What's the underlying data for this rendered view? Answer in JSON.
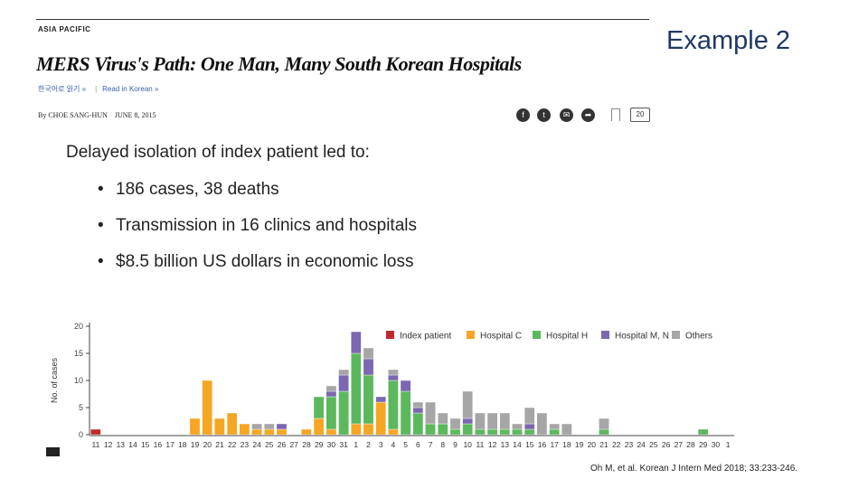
{
  "article": {
    "section": "ASIA PACIFIC",
    "headline": "MERS Virus's Path: One Man, Many South Korean Hospitals",
    "korean_link": "한국어로 읽기 »",
    "read_korean": "Read in Korean »",
    "byline": "By CHOE SANG-HUN",
    "date": "JUNE 8, 2015",
    "comment_count": "20",
    "icons": [
      "facebook-icon",
      "twitter-icon",
      "email-icon",
      "share-icon",
      "bookmark-icon",
      "comment-icon"
    ]
  },
  "slide": {
    "title": "Example 2",
    "lead": "Delayed isolation of index patient led to:",
    "bullets": [
      "186 cases, 38 deaths",
      "Transmission in 16 clinics and hospitals",
      "$8.5 billion US dollars in economic loss"
    ],
    "citation": "Oh M, et al. Korean J Intern Med 2018; 33:233-246."
  },
  "chart_data": {
    "type": "bar",
    "stacked": true,
    "ylabel": "No. of cases",
    "xlabel": "",
    "ylim": [
      0,
      20
    ],
    "yticks": [
      0,
      5,
      10,
      15,
      20
    ],
    "legend_position": "top-right",
    "categories": [
      "11",
      "12",
      "13",
      "14",
      "15",
      "16",
      "17",
      "18",
      "19",
      "20",
      "21",
      "22",
      "23",
      "24",
      "25",
      "26",
      "27",
      "28",
      "29",
      "30",
      "31",
      "1",
      "2",
      "3",
      "4",
      "5",
      "6",
      "7",
      "8",
      "9",
      "10",
      "11",
      "12",
      "13",
      "14",
      "15",
      "16",
      "17",
      "18",
      "19",
      "20",
      "21",
      "22",
      "23",
      "24",
      "25",
      "26",
      "27",
      "28",
      "29",
      "30",
      "1"
    ],
    "series": [
      {
        "name": "Index patient",
        "color": "#c0282d",
        "values": [
          1,
          0,
          0,
          0,
          0,
          0,
          0,
          0,
          0,
          0,
          0,
          0,
          0,
          0,
          0,
          0,
          0,
          0,
          0,
          0,
          0,
          0,
          0,
          0,
          0,
          0,
          0,
          0,
          0,
          0,
          0,
          0,
          0,
          0,
          0,
          0,
          0,
          0,
          0,
          0,
          0,
          0,
          0,
          0,
          0,
          0,
          0,
          0,
          0,
          0,
          0,
          0
        ]
      },
      {
        "name": "Hospital C",
        "color": "#f5a623",
        "values": [
          0,
          0,
          0,
          0,
          0,
          0,
          0,
          0,
          3,
          10,
          3,
          4,
          2,
          1,
          1,
          1,
          0,
          1,
          3,
          1,
          0,
          2,
          2,
          6,
          1,
          0,
          0,
          0,
          0,
          0,
          0,
          0,
          0,
          0,
          0,
          0,
          0,
          0,
          0,
          0,
          0,
          0,
          0,
          0,
          0,
          0,
          0,
          0,
          0,
          0,
          0,
          0
        ]
      },
      {
        "name": "Hospital H",
        "color": "#5cb85c",
        "values": [
          0,
          0,
          0,
          0,
          0,
          0,
          0,
          0,
          0,
          0,
          0,
          0,
          0,
          0,
          0,
          0,
          0,
          0,
          4,
          6,
          8,
          13,
          9,
          0,
          9,
          8,
          4,
          2,
          2,
          1,
          2,
          1,
          1,
          1,
          1,
          1,
          0,
          1,
          0,
          0,
          0,
          1,
          0,
          0,
          0,
          0,
          0,
          0,
          0,
          1,
          0,
          0
        ]
      },
      {
        "name": "Hospital M, N",
        "color": "#7b68b0",
        "values": [
          0,
          0,
          0,
          0,
          0,
          0,
          0,
          0,
          0,
          0,
          0,
          0,
          0,
          0,
          0,
          1,
          0,
          0,
          0,
          1,
          3,
          4,
          3,
          1,
          1,
          2,
          1,
          0,
          0,
          0,
          1,
          0,
          0,
          0,
          0,
          1,
          0,
          0,
          0,
          0,
          0,
          0,
          0,
          0,
          0,
          0,
          0,
          0,
          0,
          0,
          0,
          0
        ]
      },
      {
        "name": "Others",
        "color": "#a6a6a6",
        "values": [
          0,
          0,
          0,
          0,
          0,
          0,
          0,
          0,
          0,
          0,
          0,
          0,
          0,
          1,
          1,
          0,
          0,
          0,
          0,
          1,
          1,
          0,
          2,
          0,
          1,
          0,
          1,
          4,
          2,
          2,
          5,
          3,
          3,
          3,
          1,
          3,
          4,
          1,
          2,
          0,
          0,
          2,
          0,
          0,
          0,
          0,
          0,
          0,
          0,
          0,
          0,
          0
        ]
      }
    ]
  }
}
